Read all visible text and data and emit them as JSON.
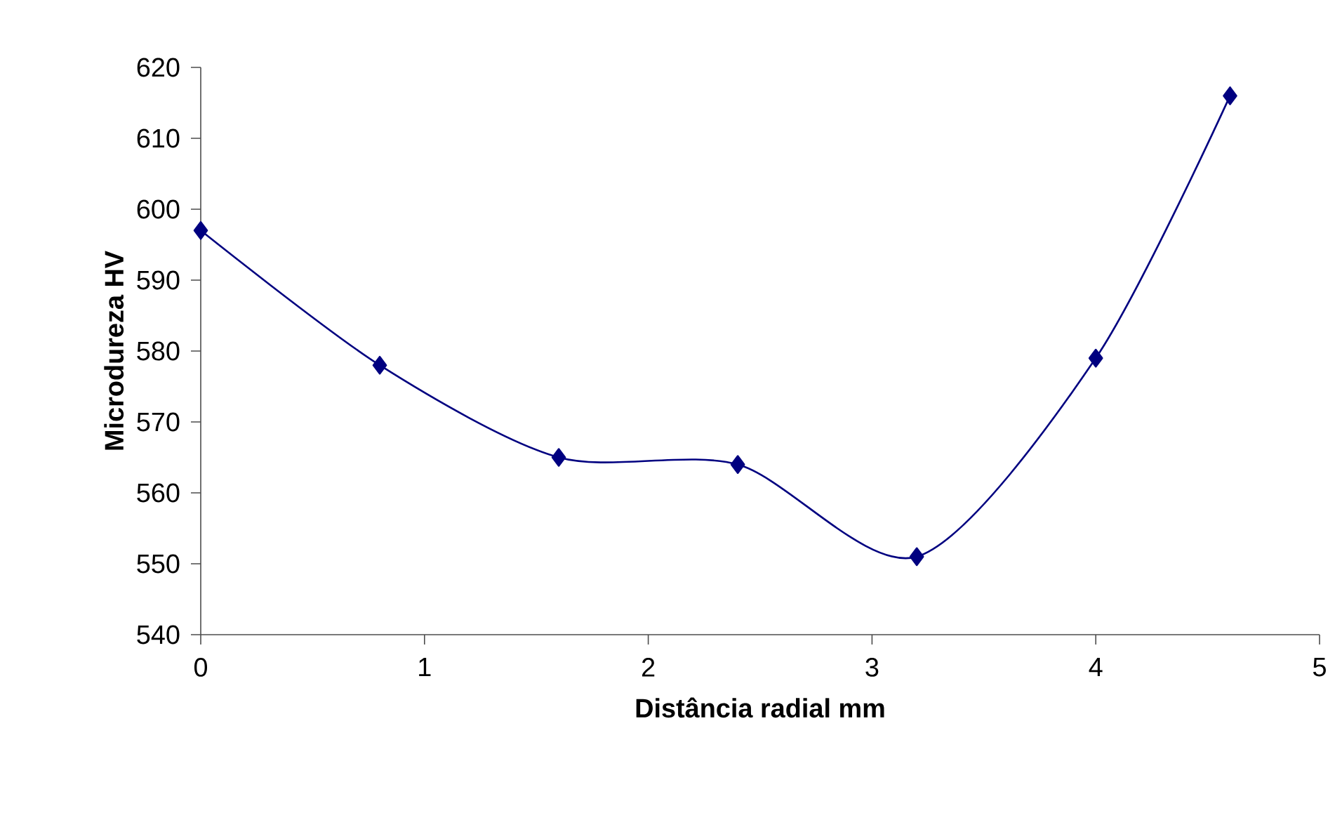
{
  "chart_data": {
    "type": "line",
    "xlabel": "Distância radial mm",
    "ylabel": "Microdureza HV",
    "x": [
      0,
      0.8,
      1.6,
      2.4,
      3.2,
      4,
      4.6
    ],
    "series": [
      {
        "color": "#000080",
        "values": [
          597,
          578,
          565,
          564,
          551,
          579,
          616
        ]
      }
    ],
    "xlim": [
      0,
      5
    ],
    "xticks": [
      0,
      1,
      2,
      3,
      4,
      5
    ],
    "ylim": [
      540,
      620
    ],
    "yticks": [
      540,
      550,
      560,
      570,
      580,
      590,
      600,
      610,
      620
    ],
    "marker": "diamond",
    "line_style": "solid"
  }
}
